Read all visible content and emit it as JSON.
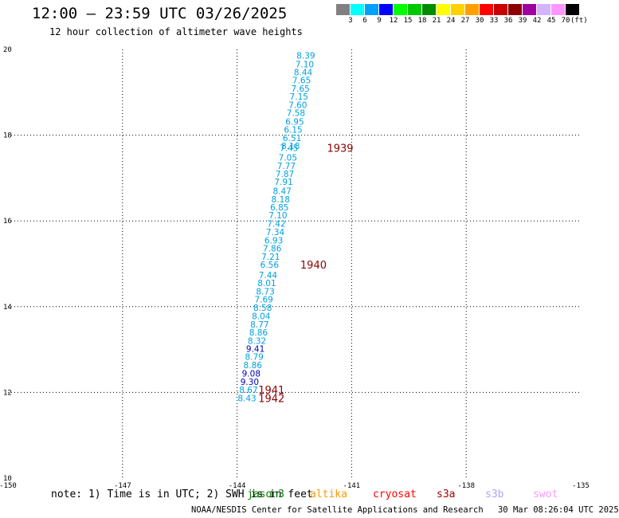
{
  "header": {
    "title": "12:00 – 23:59 UTC 03/26/2025",
    "subtitle": "12 hour collection of altimeter wave heights"
  },
  "colorbar": {
    "unit_label": "(ft)",
    "entries": [
      {
        "label": "3",
        "color": "#808080"
      },
      {
        "label": "6",
        "color": "#00ffff"
      },
      {
        "label": "9",
        "color": "#00a0ff"
      },
      {
        "label": "12",
        "color": "#0000ff"
      },
      {
        "label": "15",
        "color": "#00ff00"
      },
      {
        "label": "18",
        "color": "#00c800"
      },
      {
        "label": "21",
        "color": "#008c00"
      },
      {
        "label": "24",
        "color": "#ffff00"
      },
      {
        "label": "27",
        "color": "#ffd200"
      },
      {
        "label": "30",
        "color": "#ffa000"
      },
      {
        "label": "33",
        "color": "#ff0000"
      },
      {
        "label": "36",
        "color": "#c80000"
      },
      {
        "label": "39",
        "color": "#8c0000"
      },
      {
        "label": "42",
        "color": "#a000a0"
      },
      {
        "label": "45",
        "color": "#d2b4ff"
      },
      {
        "label": "70",
        "color": "#ff96ff"
      },
      {
        "label": "",
        "color": "#000000"
      }
    ]
  },
  "footer": {
    "note": "note: 1) Time is in UTC; 2) SWH is in feet",
    "satellites": [
      {
        "name": "jason3",
        "color": "#008000"
      },
      {
        "name": "altika",
        "color": "#ff9900"
      },
      {
        "name": "cryosat",
        "color": "#ff0000"
      },
      {
        "name": "s3a",
        "color": "#990000"
      },
      {
        "name": "s3b",
        "color": "#b4a0ff"
      },
      {
        "name": "swot",
        "color": "#ff99ff"
      }
    ],
    "credit": "NOAA/NESDIS Center for Satellite Applications and Research",
    "timestamp": "30 Mar 08:26:04 UTC 2025"
  },
  "chart_data": {
    "type": "scatter",
    "xlim": [
      -150,
      -135
    ],
    "ylim": [
      10,
      20
    ],
    "x_ticks": [
      "-150",
      "-147",
      "-144",
      "-141",
      "-138",
      "-135"
    ],
    "y_ticks": [
      "10",
      "12",
      "14",
      "16",
      "18",
      "20"
    ],
    "grid": true,
    "point_color": "#00a0e0",
    "points": [
      {
        "x": -142.2,
        "y": 19.86,
        "label": "8.39"
      },
      {
        "x": -142.23,
        "y": 19.66,
        "label": "7.10"
      },
      {
        "x": -142.27,
        "y": 19.47,
        "label": "8.44"
      },
      {
        "x": -142.31,
        "y": 19.28,
        "label": "7.65"
      },
      {
        "x": -142.34,
        "y": 19.09,
        "label": "7.65"
      },
      {
        "x": -142.38,
        "y": 18.9,
        "label": "7.15"
      },
      {
        "x": -142.41,
        "y": 18.71,
        "label": "7.60"
      },
      {
        "x": -142.46,
        "y": 18.52,
        "label": "7.58"
      },
      {
        "x": -142.49,
        "y": 18.32,
        "label": "6.95"
      },
      {
        "x": -142.53,
        "y": 18.13,
        "label": "6.15"
      },
      {
        "x": -142.56,
        "y": 17.94,
        "label": "6.51"
      },
      {
        "x": -142.6,
        "y": 17.75,
        "label": "8.18"
      },
      {
        "x": -142.64,
        "y": 17.7,
        "label": "7.45"
      },
      {
        "x": -142.67,
        "y": 17.48,
        "label": "7.05"
      },
      {
        "x": -142.71,
        "y": 17.29,
        "label": "7.77"
      },
      {
        "x": -142.75,
        "y": 17.1,
        "label": "7.87"
      },
      {
        "x": -142.78,
        "y": 16.91,
        "label": "7.91"
      },
      {
        "x": -142.82,
        "y": 16.7,
        "label": "8.47"
      },
      {
        "x": -142.86,
        "y": 16.51,
        "label": "8.18"
      },
      {
        "x": -142.89,
        "y": 16.32,
        "label": "6.85"
      },
      {
        "x": -142.93,
        "y": 16.13,
        "label": "7.10"
      },
      {
        "x": -142.97,
        "y": 15.94,
        "label": "7.42"
      },
      {
        "x": -143.0,
        "y": 15.74,
        "label": "7.34"
      },
      {
        "x": -143.04,
        "y": 15.55,
        "label": "6.93"
      },
      {
        "x": -143.08,
        "y": 15.36,
        "label": "7.86"
      },
      {
        "x": -143.12,
        "y": 15.17,
        "label": "7.21"
      },
      {
        "x": -143.15,
        "y": 14.98,
        "label": "6.56"
      },
      {
        "x": -143.19,
        "y": 14.74,
        "label": "7.44"
      },
      {
        "x": -143.22,
        "y": 14.55,
        "label": "8.01"
      },
      {
        "x": -143.26,
        "y": 14.36,
        "label": "8.73"
      },
      {
        "x": -143.3,
        "y": 14.17,
        "label": "7.69"
      },
      {
        "x": -143.33,
        "y": 13.98,
        "label": "8.58"
      },
      {
        "x": -143.37,
        "y": 13.78,
        "label": "8.04"
      },
      {
        "x": -143.41,
        "y": 13.59,
        "label": "8.77"
      },
      {
        "x": -143.44,
        "y": 13.4,
        "label": "8.86"
      },
      {
        "x": -143.48,
        "y": 13.21,
        "label": "8.32"
      },
      {
        "x": -143.52,
        "y": 13.02,
        "label": "9.41",
        "dark": true
      },
      {
        "x": -143.55,
        "y": 12.83,
        "label": "8.79"
      },
      {
        "x": -143.59,
        "y": 12.64,
        "label": "8.86"
      },
      {
        "x": -143.63,
        "y": 12.44,
        "label": "9.08",
        "dark": true
      },
      {
        "x": -143.67,
        "y": 12.25,
        "label": "9.30",
        "dark": true
      },
      {
        "x": -143.7,
        "y": 12.06,
        "label": "8.67"
      },
      {
        "x": -143.74,
        "y": 11.87,
        "label": "8.43"
      }
    ],
    "time_labels": [
      {
        "x": -141.3,
        "y": 17.7,
        "label": "1939"
      },
      {
        "x": -142.0,
        "y": 14.98,
        "label": "1940"
      },
      {
        "x": -143.1,
        "y": 12.06,
        "label": "1941"
      },
      {
        "x": -143.1,
        "y": 11.87,
        "label": "1942"
      }
    ],
    "time_label_color": "#8c0000"
  }
}
